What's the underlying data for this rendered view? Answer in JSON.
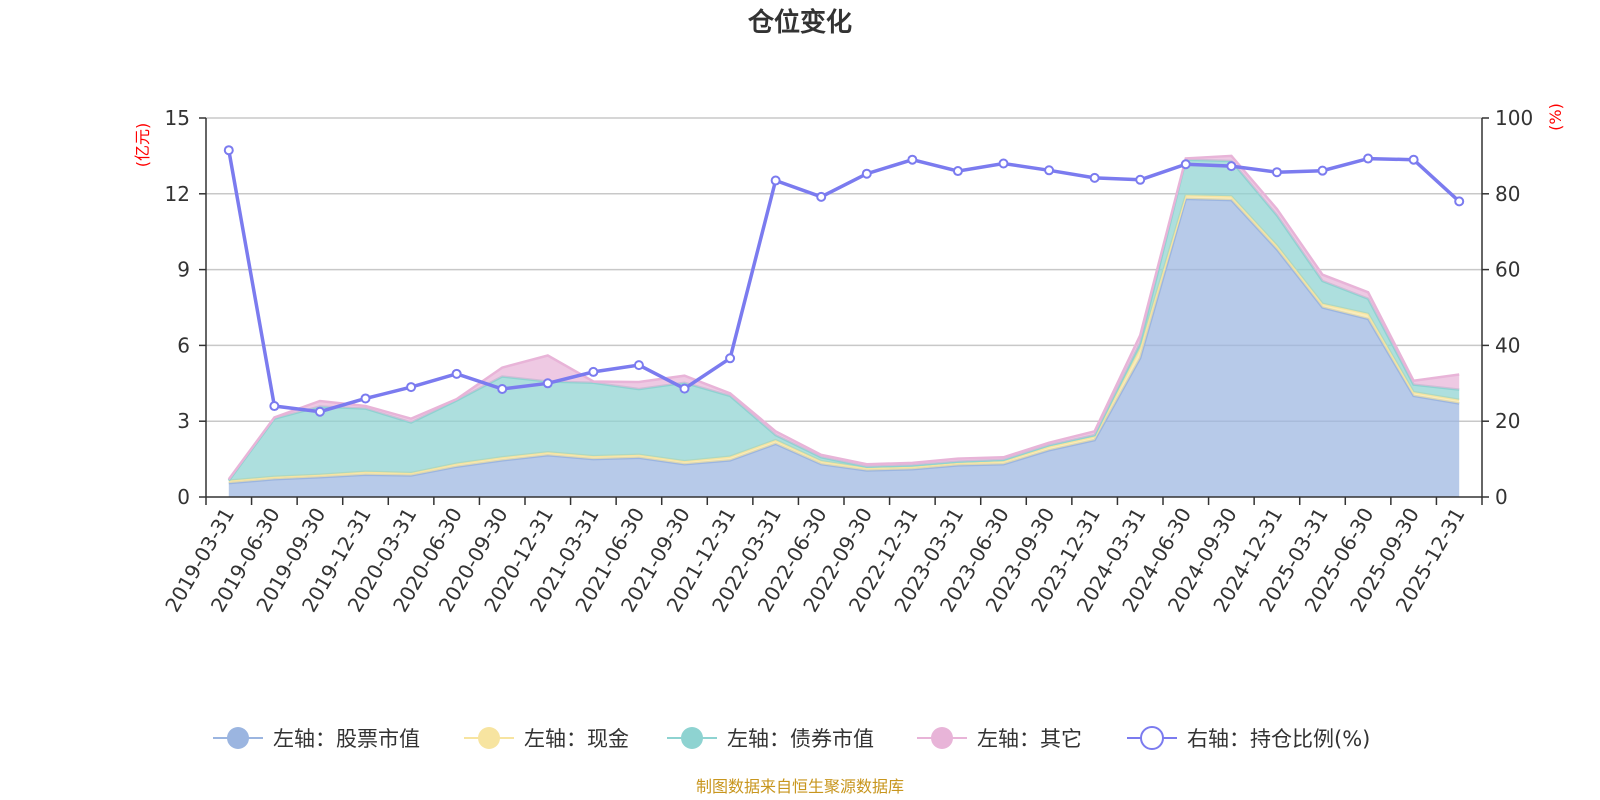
{
  "chart_data": {
    "type": "area",
    "title": "仓位变化",
    "left_unit": "(亿元)",
    "right_unit": "(%)",
    "source_text": "制图数据来自恒生聚源数据库",
    "categories": [
      "2019-03-31",
      "2019-06-30",
      "2019-09-30",
      "2019-12-31",
      "2020-03-31",
      "2020-06-30",
      "2020-09-30",
      "2020-12-31",
      "2021-03-31",
      "2021-06-30",
      "2021-09-30",
      "2021-12-31",
      "2022-03-31",
      "2022-06-30",
      "2022-09-30",
      "2022-12-31",
      "2023-03-31",
      "2023-06-30",
      "2023-09-30",
      "2023-12-31",
      "2024-03-31",
      "2024-06-30",
      "2024-09-30",
      "2024-12-31",
      "2025-03-31",
      "2025-06-30",
      "2025-09-30",
      "2025-12-31"
    ],
    "left_axis": {
      "ylim": [
        0,
        15
      ],
      "ticks": [
        "0",
        "3",
        "6",
        "9",
        "12",
        "15"
      ]
    },
    "right_axis": {
      "ylim": [
        0,
        100
      ],
      "ticks": [
        "0",
        "20",
        "40",
        "60",
        "80",
        "100"
      ]
    },
    "grid": true,
    "legend_position": "bottom",
    "series": [
      {
        "name": "左轴：股票市值",
        "axis": "left",
        "kind": "stacked-area",
        "color": "#9bb5e0",
        "values": [
          0.55,
          0.7,
          0.78,
          0.88,
          0.85,
          1.2,
          1.45,
          1.65,
          1.5,
          1.55,
          1.3,
          1.45,
          2.1,
          1.3,
          1.05,
          1.1,
          1.25,
          1.3,
          1.85,
          2.25,
          5.5,
          11.8,
          11.75,
          9.8,
          7.5,
          7.05,
          4.0,
          3.7
        ]
      },
      {
        "name": "左轴：现金",
        "axis": "left",
        "kind": "stacked-area",
        "color": "#f7e4a0",
        "values": [
          0.1,
          0.1,
          0.1,
          0.12,
          0.1,
          0.12,
          0.12,
          0.12,
          0.12,
          0.12,
          0.12,
          0.15,
          0.15,
          0.12,
          0.1,
          0.1,
          0.1,
          0.12,
          0.15,
          0.15,
          0.4,
          0.15,
          0.15,
          0.15,
          0.15,
          0.2,
          0.15,
          0.15
        ]
      },
      {
        "name": "左轴：债券市值",
        "axis": "left",
        "kind": "stacked-area",
        "color": "#8ed3d1",
        "values": [
          0,
          2.3,
          2.7,
          2.5,
          2.0,
          2.5,
          3.2,
          2.8,
          2.9,
          2.6,
          3.1,
          2.4,
          0.2,
          0.15,
          0.05,
          0.05,
          0.05,
          0.05,
          0.05,
          0.05,
          0.2,
          1.4,
          1.4,
          1.2,
          0.9,
          0.6,
          0.3,
          0.4
        ]
      },
      {
        "name": "左轴：其它",
        "axis": "left",
        "kind": "stacked-area",
        "color": "#e8b4d8",
        "values": [
          0.05,
          0.05,
          0.22,
          0.1,
          0.15,
          0.05,
          0.35,
          1.03,
          0.05,
          0.28,
          0.28,
          0.1,
          0.15,
          0.1,
          0.1,
          0.1,
          0.12,
          0.1,
          0.1,
          0.15,
          0.3,
          0.05,
          0.2,
          0.25,
          0.25,
          0.25,
          0.15,
          0.6
        ]
      },
      {
        "name": "右轴：持仓比例(%)",
        "axis": "right",
        "kind": "line",
        "color": "#7b7bef",
        "values": [
          91.5,
          24,
          22.5,
          26,
          29,
          32.5,
          28.5,
          30,
          33,
          34.8,
          28.6,
          36.6,
          83.5,
          79.2,
          85.3,
          89,
          86,
          88,
          86.2,
          84.2,
          83.7,
          87.8,
          87.3,
          85.7,
          86.1,
          89.3,
          89,
          78
        ]
      }
    ]
  }
}
